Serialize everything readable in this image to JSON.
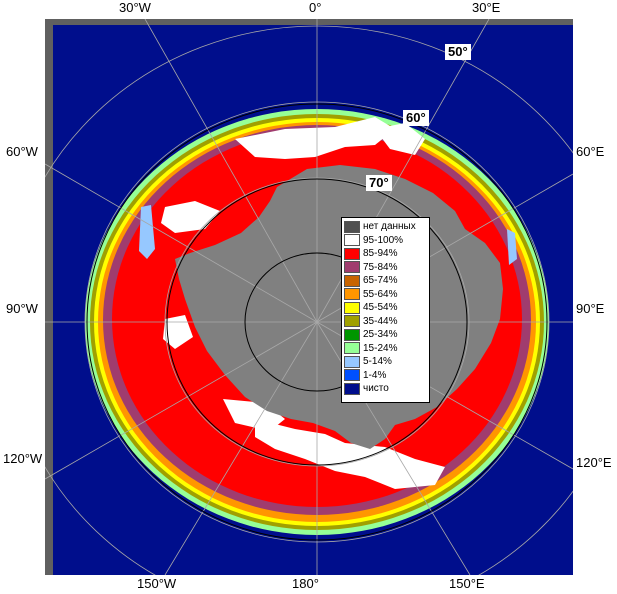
{
  "map": {
    "longitude_labels_top": [
      "30°W",
      "0°",
      "30°E"
    ],
    "longitude_labels_bottom": [
      "150°W",
      "180°",
      "150°E"
    ],
    "longitude_labels_left": [
      "60°W",
      "90°W",
      "120°W"
    ],
    "longitude_labels_right": [
      "60°E",
      "90°E",
      "120°E"
    ],
    "latitude_labels": [
      "50°",
      "60°",
      "70°"
    ],
    "colors": {
      "ocean": "#000e8c",
      "land": "#808080",
      "no_data": "#505050",
      "frame": "#606060",
      "grid": "#a8a8a8"
    }
  },
  "legend": {
    "items": [
      {
        "label": "нет данных",
        "color": "#505050"
      },
      {
        "label": "95-100%",
        "color": "#ffffff"
      },
      {
        "label": "85-94%",
        "color": "#ff0000"
      },
      {
        "label": "75-84%",
        "color": "#a03c6e"
      },
      {
        "label": "65-74%",
        "color": "#c86400"
      },
      {
        "label": "55-64%",
        "color": "#ff9600"
      },
      {
        "label": "45-54%",
        "color": "#ffff00"
      },
      {
        "label": "35-44%",
        "color": "#a0a000"
      },
      {
        "label": "25-34%",
        "color": "#009600"
      },
      {
        "label": "15-24%",
        "color": "#96ff96"
      },
      {
        "label": "5-14%",
        "color": "#96c8ff"
      },
      {
        "label": "1-4%",
        "color": "#0050ff"
      },
      {
        "label": "чисто",
        "color": "#000e8c"
      }
    ]
  }
}
